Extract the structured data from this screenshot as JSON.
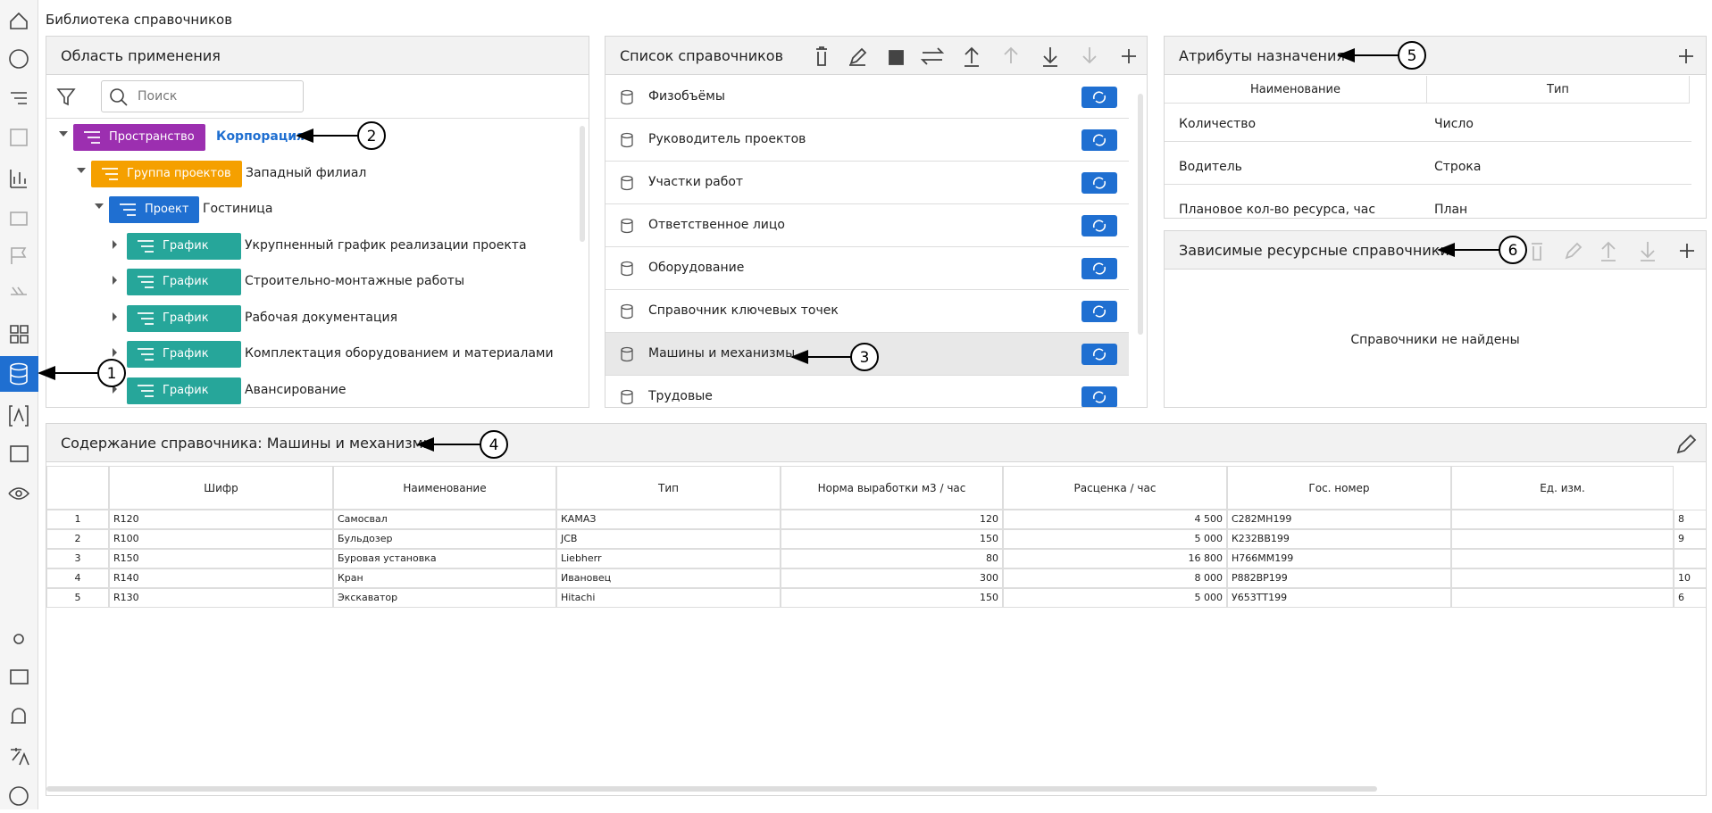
{
  "header": {
    "title": "Библиотека справочников"
  },
  "scope_panel": {
    "title": "Область применения",
    "search_placeholder": "Поиск",
    "tree": [
      {
        "tag": "Пространство",
        "label": "Корпорация",
        "children": [
          {
            "tag": "Группа проектов",
            "label": "Западный филиал",
            "children": [
              {
                "tag": "Проект",
                "label": "Гостиница",
                "children": [
                  {
                    "tag": "График",
                    "label": "Укрупненный график реализации проекта"
                  },
                  {
                    "tag": "График",
                    "label": "Строительно-монтажные работы"
                  },
                  {
                    "tag": "График",
                    "label": "Рабочая документация"
                  },
                  {
                    "tag": "График",
                    "label": "Комплектация оборудованием и материалами"
                  },
                  {
                    "tag": "График",
                    "label": "Авансирование"
                  }
                ]
              }
            ]
          }
        ]
      }
    ]
  },
  "directory_list": {
    "title": "Список справочников",
    "items": [
      "Физобъёмы",
      "Руководитель проектов",
      "Участки работ",
      "Ответственное лицо",
      "Оборудование",
      "Справочник ключевых точек",
      "Машины и механизмы",
      "Трудовые"
    ]
  },
  "attributes": {
    "title": "Атрибуты назначения",
    "columns": [
      "Наименование",
      "Тип"
    ],
    "rows": [
      [
        "Количество",
        "Число"
      ],
      [
        "Водитель",
        "Строка"
      ],
      [
        "Плановое кол-во ресурса, час",
        "План"
      ]
    ]
  },
  "dependent": {
    "title": "Зависимые ресурсные справочники",
    "empty": "Справочники не найдены"
  },
  "content": {
    "title": "Содержание справочника: Машины и механизмы",
    "columns": [
      "Шифр",
      "Наименование",
      "Тип",
      "Норма выработки м3 / час",
      "Расценка / час",
      "Гос. номер",
      "Ед. изм."
    ],
    "rows": [
      [
        "1",
        "R120",
        "Самосвал",
        "КАМАЗ",
        "120",
        "4 500",
        "С282МН199",
        null,
        "8"
      ],
      [
        "2",
        "R100",
        "Бульдозер",
        "JCB",
        "150",
        "5 000",
        "К232ВВ199",
        null,
        "9"
      ],
      [
        "3",
        "R150",
        "Буровая установка",
        "Liebherr",
        "80",
        "16 800",
        "Н766ММ199",
        null,
        null
      ],
      [
        "4",
        "R140",
        "Кран",
        "Ивановец",
        "300",
        "8 000",
        "Р882ВР199",
        null,
        "10"
      ],
      [
        "5",
        "R130",
        "Экскаватор",
        "Hitachi",
        "150",
        "5 000",
        "У653ТТ199",
        null,
        "6"
      ]
    ]
  },
  "callouts": [
    "1",
    "2",
    "3",
    "4",
    "5",
    "6"
  ]
}
